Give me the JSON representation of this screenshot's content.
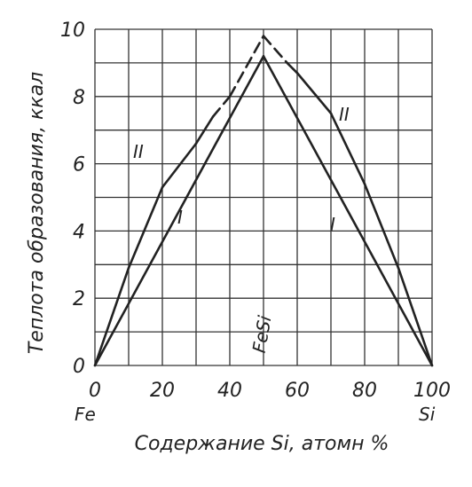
{
  "chart_data": {
    "type": "line",
    "y_label": "Теплота образования, ккал",
    "x_label": "Содержание Si, атомн %",
    "annotations": [
      "Fe",
      "Si",
      "FeSi"
    ],
    "xlim": [
      0,
      100
    ],
    "xticks": [
      0,
      20,
      40,
      60,
      80,
      100
    ],
    "x_minor_ticks": [
      10,
      30,
      50,
      70,
      90
    ],
    "ylim": [
      0,
      10
    ],
    "yticks": [
      0,
      2,
      4,
      6,
      8,
      10
    ],
    "y_minor_ticks": [
      1,
      3,
      5,
      7,
      9
    ],
    "grid": true,
    "series": [
      {
        "name": "I",
        "color": "#222222",
        "x": [
          0,
          50,
          100
        ],
        "values": [
          0,
          9.2,
          0
        ]
      },
      {
        "name": "II",
        "color": "#222222",
        "dashed_from": 35,
        "dashed_to": 57,
        "x": [
          0,
          10,
          20,
          30,
          35,
          40,
          50,
          57,
          60,
          70,
          80,
          90,
          100
        ],
        "values": [
          0,
          2.9,
          5.3,
          6.6,
          7.4,
          8.0,
          9.8,
          9.0,
          8.7,
          7.5,
          5.4,
          2.9,
          0
        ]
      }
    ]
  }
}
